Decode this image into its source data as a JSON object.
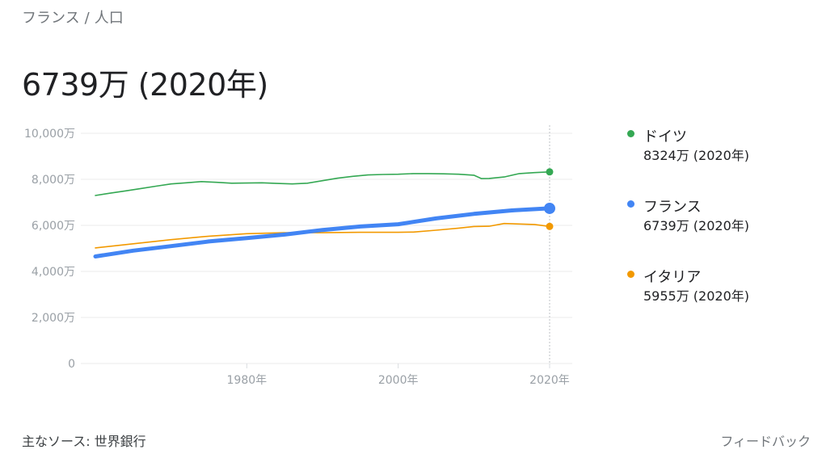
{
  "breadcrumb": {
    "country": "フランス",
    "separator": "/",
    "topic": "人口"
  },
  "headline": "6739万 (2020年)",
  "legend": [
    {
      "name": "ドイツ",
      "value": "8324万 (2020年)",
      "color": "#34a853"
    },
    {
      "name": "フランス",
      "value": "6739万 (2020年)",
      "color": "#4285f4"
    },
    {
      "name": "イタリア",
      "value": "5955万 (2020年)",
      "color": "#f29900"
    }
  ],
  "footer": {
    "source": "主なソース: 世界銀行",
    "feedback": "フィードバック"
  },
  "chart_data": {
    "type": "line",
    "ylim": [
      0,
      10000
    ],
    "xlim": [
      1960,
      2020
    ],
    "yticks": [
      0,
      2000,
      4000,
      6000,
      8000,
      10000
    ],
    "ytick_labels": [
      "0",
      "2,000万",
      "4,000万",
      "6,000万",
      "8,000万",
      "10,000万"
    ],
    "xticks": [
      1980,
      2000,
      2020
    ],
    "xtick_labels": [
      "1980年",
      "2000年",
      "2020年"
    ],
    "highlight_year": 2020,
    "series": [
      {
        "name": "ドイツ",
        "color": "#34a853",
        "emphasis": false,
        "x": [
          1960,
          1962,
          1964,
          1966,
          1968,
          1970,
          1972,
          1974,
          1976,
          1978,
          1980,
          1982,
          1984,
          1986,
          1988,
          1990,
          1992,
          1994,
          1996,
          1998,
          2000,
          2002,
          2004,
          2006,
          2008,
          2010,
          2011,
          2012,
          2014,
          2016,
          2018,
          2020
        ],
        "values": [
          7300,
          7400,
          7500,
          7600,
          7700,
          7800,
          7850,
          7900,
          7870,
          7830,
          7840,
          7850,
          7820,
          7800,
          7830,
          7940,
          8050,
          8130,
          8190,
          8210,
          8220,
          8250,
          8250,
          8240,
          8220,
          8180,
          8030,
          8040,
          8100,
          8250,
          8290,
          8324
        ]
      },
      {
        "name": "フランス",
        "color": "#4285f4",
        "emphasis": true,
        "x": [
          1960,
          1965,
          1970,
          1975,
          1980,
          1985,
          1990,
          1995,
          2000,
          2005,
          2010,
          2015,
          2020
        ],
        "values": [
          4650,
          4900,
          5100,
          5300,
          5450,
          5600,
          5800,
          5950,
          6050,
          6300,
          6500,
          6650,
          6739
        ]
      },
      {
        "name": "イタリア",
        "color": "#f29900",
        "emphasis": false,
        "x": [
          1960,
          1965,
          1970,
          1975,
          1980,
          1985,
          1990,
          1995,
          2000,
          2002,
          2005,
          2008,
          2010,
          2012,
          2014,
          2016,
          2018,
          2020
        ],
        "values": [
          5020,
          5200,
          5380,
          5530,
          5640,
          5680,
          5680,
          5700,
          5700,
          5710,
          5790,
          5880,
          5950,
          5960,
          6080,
          6060,
          6040,
          5955
        ]
      }
    ]
  }
}
